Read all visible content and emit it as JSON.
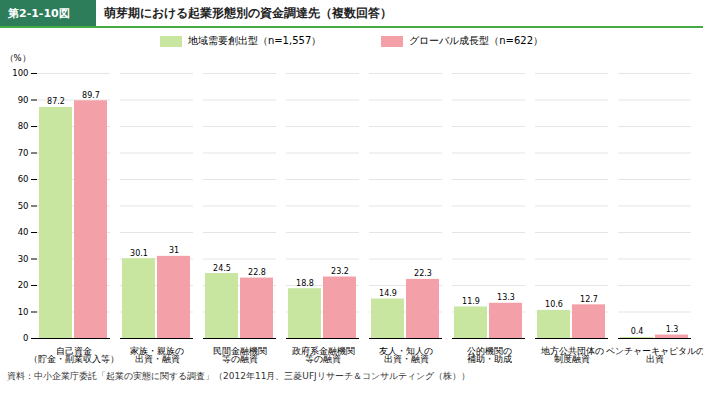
{
  "chart_data": {
    "type": "bar",
    "title": "萌芽期における起業形態別の資金調達先（複数回答）",
    "header_label": "第2-1-10図",
    "footer": "資料：中小企業庁委託「起業の実態に関する調査」（2012年11月、三菱UFJリサーチ＆コンサルティング（株））",
    "ylabel": "（%）",
    "categories": [
      "自己資金\n（貯金・副業収入等）",
      "家族・親族の\n出資・融資",
      "民間金融機関\n等の融資",
      "政府系金融機関\n等の融資",
      "友人・知人の\n出資・融資",
      "公的機関の\n補助・助成",
      "地方公共団体の\n制度融資",
      "ベンチャーキャピタルの\n出資"
    ],
    "series": [
      {
        "name": "地域需要創出型（n=1,557）",
        "color": "#c8e6a0",
        "values": [
          87.2,
          30.1,
          24.5,
          18.8,
          14.9,
          11.9,
          10.6,
          0.4
        ]
      },
      {
        "name": "グローバル成長型（n=622）",
        "color": "#f4a0a8",
        "values": [
          89.7,
          31.0,
          22.8,
          23.2,
          22.3,
          13.3,
          12.7,
          1.3
        ]
      }
    ],
    "ylim": [
      0,
      100
    ],
    "yticks": [
      0,
      10,
      20,
      30,
      40,
      50,
      60,
      70,
      80,
      90,
      100
    ],
    "grid": true,
    "legend": "top",
    "data_labels": true
  }
}
